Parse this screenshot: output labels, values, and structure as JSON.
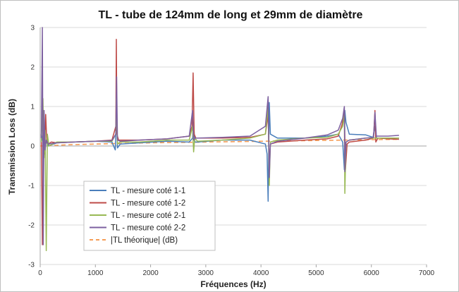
{
  "chart_data": {
    "type": "line",
    "title": "TL - tube de 124mm de long et 29mm de diamètre",
    "xlabel": "Fréquences (Hz)",
    "ylabel": "Transmission Loss (dB)",
    "xlim": [
      0,
      7000
    ],
    "ylim": [
      -3,
      3
    ],
    "x_ticks": [
      0,
      1000,
      2000,
      3000,
      4000,
      5000,
      6000,
      7000
    ],
    "y_ticks": [
      -3,
      -2,
      -1,
      0,
      1,
      2,
      3
    ],
    "grid": "horizontal",
    "legend_position": "bottom-left",
    "series": [
      {
        "name": "TL - mesure coté 1-1",
        "color": "#4a7ebb",
        "x": [
          20,
          50,
          80,
          110,
          150,
          300,
          600,
          1000,
          1300,
          1360,
          1380,
          1400,
          1450,
          1800,
          2300,
          2700,
          2760,
          2780,
          2800,
          2850,
          3300,
          3800,
          4080,
          4110,
          4130,
          4150,
          4170,
          4300,
          4800,
          5200,
          5400,
          5480,
          5510,
          5520,
          5540,
          5600,
          5900,
          6030,
          6060,
          6080,
          6100,
          6300,
          6500
        ],
        "y": [
          0.1,
          0.3,
          0.05,
          0.1,
          0.0,
          0.08,
          0.1,
          0.12,
          0.1,
          -0.1,
          0.8,
          -0.05,
          0.05,
          0.08,
          0.12,
          0.1,
          0.2,
          0.6,
          0.1,
          0.1,
          0.15,
          0.15,
          0.05,
          -0.2,
          -1.4,
          1.1,
          0.3,
          0.2,
          0.2,
          0.25,
          0.3,
          0.1,
          -0.6,
          0.9,
          0.6,
          0.3,
          0.28,
          0.22,
          0.5,
          0.25,
          0.2,
          0.2,
          0.2
        ]
      },
      {
        "name": "TL - mesure coté 1-2",
        "color": "#be4b48",
        "x": [
          20,
          40,
          60,
          80,
          100,
          120,
          150,
          200,
          300,
          600,
          1000,
          1300,
          1370,
          1380,
          1390,
          1420,
          1800,
          2300,
          2700,
          2750,
          2770,
          2790,
          2820,
          3300,
          3800,
          4080,
          4130,
          4150,
          4170,
          4300,
          4800,
          5200,
          5400,
          5470,
          5510,
          5530,
          5560,
          5600,
          5900,
          6040,
          6065,
          6080,
          6120,
          6300,
          6500
        ],
        "y": [
          0.3,
          -2.5,
          0.5,
          -0.2,
          0.8,
          0.1,
          0.05,
          0.1,
          0.08,
          0.1,
          0.12,
          0.15,
          0.5,
          2.7,
          0.3,
          0.15,
          0.15,
          0.18,
          0.25,
          0.5,
          1.85,
          0.3,
          0.2,
          0.2,
          0.22,
          0.3,
          0.8,
          -0.5,
          0.05,
          0.1,
          0.15,
          0.18,
          0.25,
          0.55,
          0.9,
          -0.6,
          0.05,
          0.1,
          0.15,
          0.2,
          0.9,
          0.1,
          0.2,
          0.18,
          0.17
        ]
      },
      {
        "name": "TL - mesure coté 2-1",
        "color": "#98b954",
        "x": [
          20,
          50,
          70,
          90,
          110,
          130,
          160,
          300,
          600,
          1000,
          1300,
          1370,
          1380,
          1400,
          1450,
          1800,
          2300,
          2700,
          2760,
          2780,
          2800,
          2850,
          3300,
          3800,
          4080,
          4130,
          4150,
          4170,
          4300,
          4800,
          5200,
          5400,
          5480,
          5510,
          5520,
          5540,
          5600,
          5900,
          6300,
          6500
        ],
        "y": [
          0.1,
          1.2,
          -0.3,
          0.4,
          -2.65,
          0.3,
          0.0,
          0.1,
          0.1,
          0.12,
          0.12,
          0.3,
          1.2,
          0.05,
          0.1,
          0.1,
          0.15,
          0.15,
          0.5,
          -0.15,
          0.2,
          0.12,
          0.15,
          0.2,
          0.3,
          1.0,
          -1.0,
          0.1,
          0.15,
          0.2,
          0.22,
          0.3,
          0.5,
          0.8,
          -1.2,
          0.1,
          0.15,
          0.2,
          0.2,
          0.2
        ]
      },
      {
        "name": "TL - mesure coté 2-2",
        "color": "#7d60a0",
        "x": [
          20,
          40,
          55,
          70,
          90,
          110,
          150,
          300,
          600,
          1000,
          1300,
          1370,
          1385,
          1400,
          1450,
          1800,
          2300,
          2700,
          2760,
          2780,
          2800,
          2850,
          3300,
          3800,
          4080,
          4130,
          4150,
          4170,
          4300,
          4800,
          5200,
          5400,
          5480,
          5510,
          5520,
          5540,
          5600,
          5900,
          6040,
          6065,
          6090,
          6300,
          6500
        ],
        "y": [
          0.2,
          3.0,
          -2.5,
          0.9,
          -0.1,
          0.15,
          0.05,
          0.08,
          0.1,
          0.12,
          0.14,
          0.3,
          1.75,
          0.15,
          0.12,
          0.15,
          0.18,
          0.25,
          0.9,
          0.15,
          0.2,
          0.2,
          0.22,
          0.25,
          0.5,
          1.25,
          -0.8,
          0.05,
          0.12,
          0.2,
          0.28,
          0.4,
          0.7,
          1.0,
          -0.65,
          0.1,
          0.15,
          0.2,
          0.22,
          0.85,
          0.25,
          0.25,
          0.27
        ]
      },
      {
        "name": "|TL théorique| (dB)",
        "color": "#f59d56",
        "dashed": true,
        "x": [
          0,
          500,
          1000,
          2000,
          3000,
          4000,
          5000,
          6000,
          6500
        ],
        "y": [
          0.0,
          0.03,
          0.05,
          0.08,
          0.1,
          0.12,
          0.14,
          0.16,
          0.17
        ]
      }
    ]
  }
}
